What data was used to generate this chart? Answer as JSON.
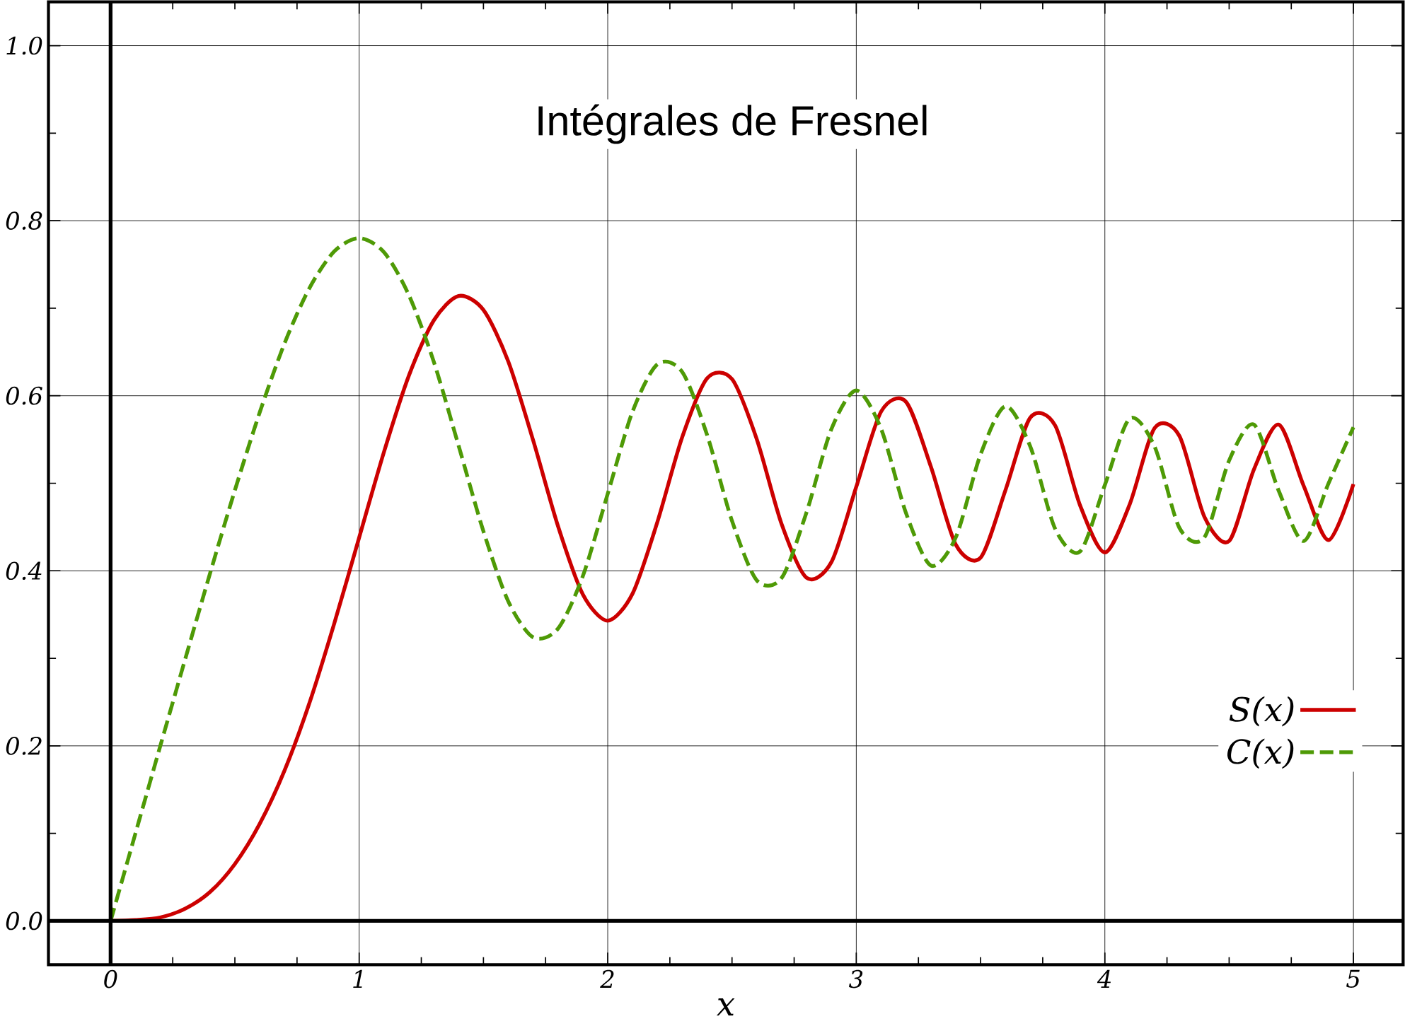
{
  "chart_data": {
    "type": "line",
    "title": "Intégrales de Fresnel",
    "xlabel": "x",
    "x": [
      0,
      0.1,
      0.2,
      0.3,
      0.4,
      0.5,
      0.6,
      0.7,
      0.8,
      0.9,
      1.0,
      1.1,
      1.2,
      1.3,
      1.4,
      1.5,
      1.6,
      1.7,
      1.8,
      1.9,
      2.0,
      2.1,
      2.2,
      2.3,
      2.4,
      2.5,
      2.6,
      2.7,
      2.8,
      2.9,
      3.0,
      3.1,
      3.2,
      3.3,
      3.4,
      3.5,
      3.6,
      3.7,
      3.8,
      3.9,
      4.0,
      4.1,
      4.2,
      4.3,
      4.4,
      4.5,
      4.6,
      4.7,
      4.8,
      4.9,
      5.0
    ],
    "series": [
      {
        "name": "S(x)",
        "color": "#cc0000",
        "line_style": "solid",
        "values": [
          0,
          0.001,
          0.004,
          0.014,
          0.033,
          0.065,
          0.111,
          0.172,
          0.249,
          0.34,
          0.438,
          0.536,
          0.623,
          0.686,
          0.714,
          0.698,
          0.639,
          0.549,
          0.451,
          0.373,
          0.343,
          0.374,
          0.456,
          0.553,
          0.62,
          0.619,
          0.55,
          0.453,
          0.392,
          0.41,
          0.496,
          0.582,
          0.593,
          0.519,
          0.43,
          0.415,
          0.492,
          0.575,
          0.566,
          0.475,
          0.421,
          0.476,
          0.563,
          0.554,
          0.462,
          0.434,
          0.516,
          0.567,
          0.497,
          0.435,
          0.499
        ]
      },
      {
        "name": "C(x)",
        "color": "#4e9a06",
        "line_style": "dashed",
        "values": [
          0,
          0.1,
          0.2,
          0.299,
          0.397,
          0.492,
          0.581,
          0.66,
          0.723,
          0.765,
          0.78,
          0.764,
          0.715,
          0.639,
          0.543,
          0.445,
          0.365,
          0.324,
          0.334,
          0.394,
          0.488,
          0.582,
          0.636,
          0.627,
          0.555,
          0.457,
          0.389,
          0.392,
          0.467,
          0.562,
          0.606,
          0.562,
          0.466,
          0.406,
          0.438,
          0.533,
          0.588,
          0.542,
          0.448,
          0.422,
          0.498,
          0.574,
          0.542,
          0.449,
          0.438,
          0.526,
          0.567,
          0.491,
          0.434,
          0.5,
          0.564
        ]
      }
    ],
    "xlim": [
      -0.25,
      5.2
    ],
    "ylim": [
      -0.05,
      1.05
    ],
    "xticks": [
      0,
      1,
      2,
      3,
      4,
      5
    ],
    "yticks": [
      {
        "value": 0,
        "label": "0.0"
      },
      0.2,
      0.4,
      0.6,
      0.8,
      {
        "value": 1,
        "label": "1.0"
      }
    ],
    "grid": true,
    "legend": "bottom right"
  }
}
